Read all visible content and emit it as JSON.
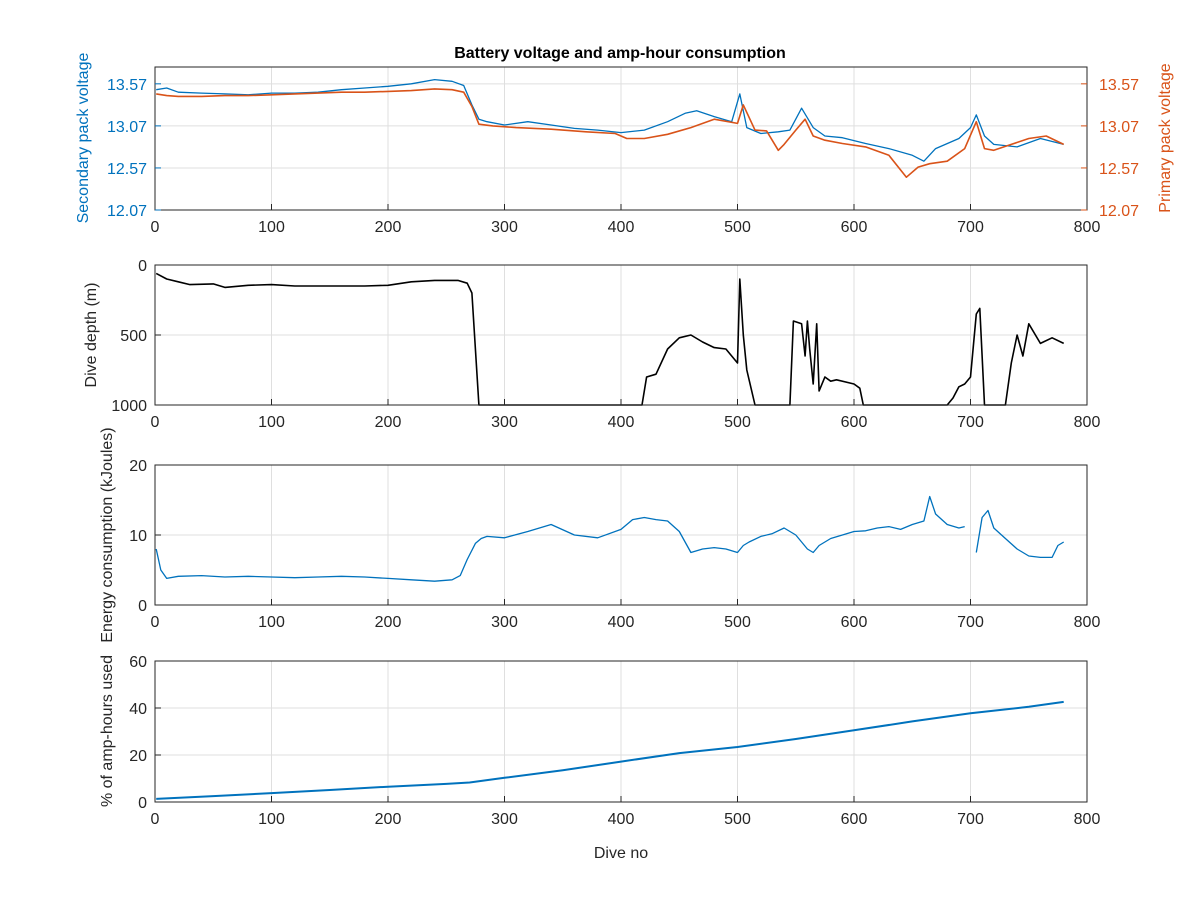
{
  "figure": {
    "title": "Battery voltage and amp-hour consumption",
    "xlabel": "Dive no"
  },
  "colors": {
    "secondary": "#0072bd",
    "primary": "#d95319",
    "depth": "#000000",
    "energy": "#0072bd",
    "amphours": "#0072bd",
    "axis": "#262626",
    "grid": "#dfdfdf"
  },
  "chart_data": [
    {
      "type": "line",
      "title": "Battery voltage and amp-hour consumption",
      "xlim": [
        0,
        800
      ],
      "xticks": [
        0,
        100,
        200,
        300,
        400,
        500,
        600,
        700,
        800
      ],
      "ylabel": "Secondary pack voltage",
      "ylim": [
        12.07,
        13.77
      ],
      "yticks": [
        "12.07",
        "12.57",
        "13.07",
        "13.57"
      ],
      "y2label": "Primary pack voltage",
      "y2lim": [
        12.07,
        13.77
      ],
      "y2ticks": [
        "12.07",
        "12.57",
        "13.07",
        "13.57"
      ],
      "grid": true,
      "series": [
        {
          "axis": "left",
          "x": [
            1,
            10,
            20,
            40,
            60,
            80,
            100,
            120,
            140,
            160,
            180,
            200,
            220,
            240,
            255,
            265,
            272,
            278,
            285,
            300,
            320,
            340,
            360,
            380,
            400,
            420,
            440,
            455,
            465,
            480,
            495,
            502,
            508,
            520,
            535,
            545,
            555,
            565,
            575,
            590,
            610,
            630,
            650,
            660,
            670,
            690,
            700,
            705,
            712,
            720,
            740,
            760,
            780
          ],
          "y": [
            13.5,
            13.52,
            13.47,
            13.46,
            13.45,
            13.44,
            13.46,
            13.46,
            13.47,
            13.5,
            13.52,
            13.54,
            13.57,
            13.62,
            13.6,
            13.55,
            13.32,
            13.15,
            13.12,
            13.08,
            13.12,
            13.08,
            13.04,
            13.02,
            12.99,
            13.02,
            13.12,
            13.22,
            13.25,
            13.18,
            13.12,
            13.45,
            13.05,
            12.98,
            13.0,
            13.02,
            13.28,
            13.05,
            12.95,
            12.93,
            12.86,
            12.8,
            12.72,
            12.65,
            12.8,
            12.92,
            13.05,
            13.2,
            12.95,
            12.85,
            12.82,
            12.92,
            12.85
          ]
        },
        {
          "axis": "right",
          "x": [
            1,
            10,
            20,
            40,
            60,
            80,
            100,
            120,
            140,
            160,
            180,
            200,
            220,
            240,
            255,
            265,
            272,
            278,
            290,
            310,
            340,
            370,
            395,
            405,
            420,
            440,
            460,
            480,
            500,
            505,
            515,
            525,
            535,
            540,
            550,
            558,
            565,
            575,
            590,
            610,
            630,
            645,
            655,
            665,
            680,
            695,
            705,
            712,
            720,
            735,
            750,
            765,
            780
          ],
          "y": [
            13.45,
            13.43,
            13.42,
            13.42,
            13.43,
            13.43,
            13.44,
            13.45,
            13.46,
            13.47,
            13.47,
            13.48,
            13.49,
            13.51,
            13.5,
            13.47,
            13.3,
            13.09,
            13.07,
            13.05,
            13.03,
            13.0,
            12.98,
            12.92,
            12.92,
            12.97,
            13.05,
            13.15,
            13.1,
            13.32,
            13.02,
            13.01,
            12.78,
            12.85,
            13.02,
            13.15,
            12.95,
            12.9,
            12.86,
            12.82,
            12.72,
            12.46,
            12.58,
            12.62,
            12.65,
            12.8,
            13.12,
            12.8,
            12.78,
            12.85,
            12.92,
            12.95,
            12.85
          ]
        }
      ]
    },
    {
      "type": "line",
      "xlim": [
        0,
        800
      ],
      "xticks": [
        0,
        100,
        200,
        300,
        400,
        500,
        600,
        700,
        800
      ],
      "ylabel": "Dive depth (m)",
      "ylim": [
        1000,
        0
      ],
      "yticks": [
        "0",
        "500",
        "1000"
      ],
      "yreverse": true,
      "grid": true,
      "series": [
        {
          "x": [
            1,
            10,
            20,
            30,
            50,
            60,
            80,
            100,
            120,
            140,
            160,
            180,
            200,
            220,
            240,
            260,
            268,
            272,
            275,
            278,
            280,
            300,
            350,
            400,
            418,
            422,
            430,
            440,
            450,
            460,
            470,
            480,
            490,
            495,
            500,
            502,
            505,
            508,
            515,
            520,
            545,
            548,
            555,
            558,
            560,
            562,
            565,
            568,
            570,
            575,
            580,
            585,
            600,
            605,
            608,
            612,
            615,
            680,
            685,
            690,
            695,
            700,
            705,
            708,
            712,
            715,
            730,
            735,
            740,
            745,
            750,
            760,
            770,
            780
          ],
          "y": [
            60,
            100,
            120,
            140,
            135,
            160,
            145,
            140,
            150,
            150,
            150,
            150,
            145,
            120,
            110,
            110,
            130,
            200,
            600,
            1000,
            1000,
            1000,
            1000,
            1000,
            1000,
            800,
            780,
            600,
            520,
            500,
            550,
            590,
            600,
            650,
            700,
            100,
            500,
            750,
            1000,
            1000,
            1000,
            400,
            420,
            650,
            400,
            600,
            850,
            420,
            900,
            800,
            830,
            820,
            850,
            880,
            1000,
            1000,
            1000,
            1000,
            950,
            870,
            850,
            800,
            350,
            310,
            1000,
            1000,
            1000,
            700,
            500,
            650,
            420,
            560,
            520,
            560
          ]
        }
      ]
    },
    {
      "type": "line",
      "xlim": [
        0,
        800
      ],
      "xticks": [
        0,
        100,
        200,
        300,
        400,
        500,
        600,
        700,
        800
      ],
      "ylabel": "Energy consumption (kJoules)",
      "ylim": [
        0,
        20
      ],
      "yticks": [
        "0",
        "10",
        "20"
      ],
      "grid": true,
      "series": [
        {
          "x": [
            1,
            5,
            10,
            20,
            40,
            60,
            80,
            100,
            120,
            140,
            160,
            180,
            200,
            220,
            240,
            255,
            262,
            268,
            275,
            280,
            285,
            300,
            320,
            340,
            360,
            380,
            400,
            410,
            420,
            430,
            440,
            450,
            455,
            460,
            470,
            480,
            490,
            500,
            505,
            510,
            520,
            530,
            540,
            550,
            560,
            565,
            570,
            580,
            590,
            600,
            610,
            620,
            630,
            640,
            650,
            660,
            665,
            670,
            680,
            690,
            695,
            700,
            705,
            710,
            715,
            720,
            730,
            740,
            750,
            760,
            770,
            775,
            780
          ],
          "y": [
            8,
            5,
            3.8,
            4.1,
            4.2,
            4.0,
            4.1,
            4.0,
            3.9,
            4.0,
            4.1,
            4.0,
            3.8,
            3.6,
            3.4,
            3.6,
            4.2,
            6.5,
            8.8,
            9.5,
            9.8,
            9.6,
            10.5,
            11.5,
            10.0,
            9.6,
            10.8,
            12.2,
            12.5,
            12.2,
            12.0,
            10.5,
            9.0,
            7.5,
            8.0,
            8.2,
            8.0,
            7.5,
            8.5,
            9.0,
            9.8,
            10.2,
            11.0,
            10.0,
            8.0,
            7.5,
            8.5,
            9.5,
            10.0,
            10.5,
            10.6,
            11.0,
            11.2,
            10.8,
            11.5,
            12.0,
            15.5,
            13.0,
            11.5,
            11.0,
            11.2,
            null,
            7.5,
            12.5,
            13.5,
            11.0,
            9.5,
            8.0,
            7.0,
            6.8,
            6.8,
            8.5,
            9.0
          ]
        }
      ]
    },
    {
      "type": "line",
      "xlim": [
        0,
        800
      ],
      "xticks": [
        0,
        100,
        200,
        300,
        400,
        500,
        600,
        700,
        800
      ],
      "xlabel": "Dive no",
      "ylabel": "% of amp-hours used",
      "ylim": [
        0,
        60
      ],
      "yticks": [
        "0",
        "20",
        "40",
        "60"
      ],
      "grid": true,
      "series": [
        {
          "x": [
            1,
            50,
            100,
            150,
            200,
            250,
            270,
            300,
            350,
            400,
            450,
            500,
            550,
            600,
            650,
            700,
            750,
            780
          ],
          "y": [
            1.3,
            2.5,
            3.8,
            5.1,
            6.5,
            7.7,
            8.3,
            10.3,
            13.5,
            17.2,
            20.8,
            23.4,
            26.8,
            30.5,
            34.3,
            37.8,
            40.5,
            42.6
          ]
        }
      ]
    }
  ]
}
